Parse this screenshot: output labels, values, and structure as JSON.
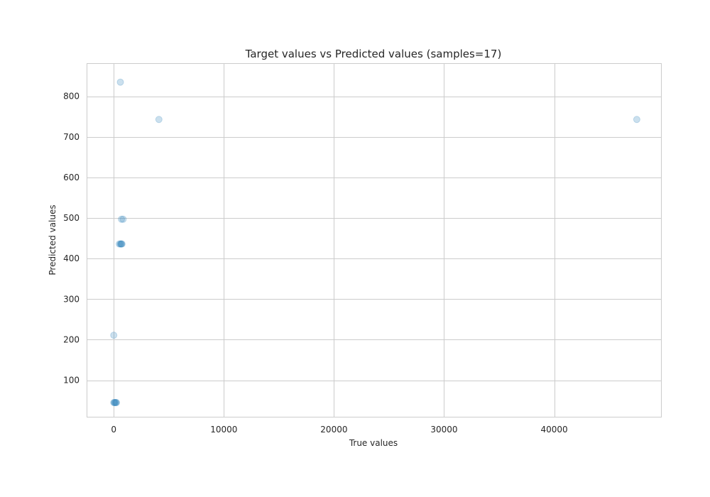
{
  "chart_data": {
    "type": "scatter",
    "title": "Target values vs Predicted values (samples=17)",
    "xlabel": "True values",
    "ylabel": "Predicted values",
    "xlim": [
      -2400,
      49700
    ],
    "ylim": [
      10,
      880
    ],
    "xticks": [
      0,
      10000,
      20000,
      30000,
      40000
    ],
    "yticks": [
      100,
      200,
      300,
      400,
      500,
      600,
      700,
      800
    ],
    "xtick_labels": [
      "0",
      "10000",
      "20000",
      "30000",
      "40000"
    ],
    "ytick_labels": [
      "100",
      "200",
      "300",
      "400",
      "500",
      "600",
      "700",
      "800"
    ],
    "grid": true,
    "point_color": "#3182bd",
    "point_alpha": 0.25,
    "points": [
      {
        "x": 600,
        "y": 835
      },
      {
        "x": 4100,
        "y": 743
      },
      {
        "x": 47500,
        "y": 743
      },
      {
        "x": 700,
        "y": 497
      },
      {
        "x": 850,
        "y": 497
      },
      {
        "x": 500,
        "y": 436
      },
      {
        "x": 600,
        "y": 436
      },
      {
        "x": 650,
        "y": 436
      },
      {
        "x": 700,
        "y": 436
      },
      {
        "x": 750,
        "y": 436
      },
      {
        "x": 0,
        "y": 211
      },
      {
        "x": 0,
        "y": 45
      },
      {
        "x": 50,
        "y": 45
      },
      {
        "x": 100,
        "y": 45
      },
      {
        "x": 150,
        "y": 45
      },
      {
        "x": 200,
        "y": 45
      },
      {
        "x": 250,
        "y": 45
      }
    ]
  }
}
